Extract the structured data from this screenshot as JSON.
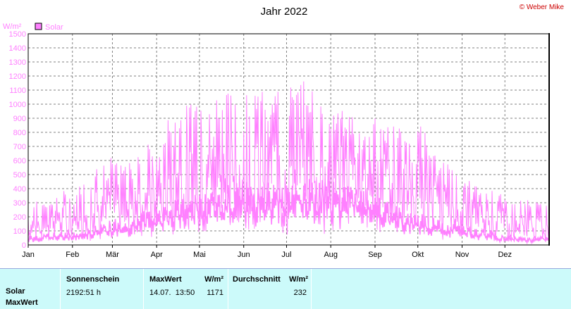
{
  "header": {
    "title": "Jahr 2022",
    "credit": "© Weber Mike"
  },
  "colors": {
    "solar": "#ff80ff",
    "solar_legend_fill": "#ff80ff",
    "grid": "#808080",
    "stats_bg": "#ccfafa"
  },
  "chart_data": {
    "type": "line",
    "title": "Jahr 2022",
    "ylabel": "W/m²",
    "ylim": [
      0,
      1500
    ],
    "yticks": [
      0,
      100,
      200,
      300,
      400,
      500,
      600,
      700,
      800,
      900,
      1000,
      1100,
      1200,
      1300,
      1400,
      1500
    ],
    "months": [
      "Jan",
      "Feb",
      "Mär",
      "Apr",
      "Mai",
      "Jun",
      "Jul",
      "Aug",
      "Sep",
      "Okt",
      "Nov",
      "Dez"
    ],
    "grid": true,
    "legend": "top-left",
    "series": [
      {
        "name": "Solar",
        "color": "#ff80ff",
        "description_of_shape": "daily max",
        "weekly_max_envelope": [
          {
            "x": "2022-01-01",
            "y": 300
          },
          {
            "x": "2022-01-08",
            "y": 350
          },
          {
            "x": "2022-01-15",
            "y": 300
          },
          {
            "x": "2022-01-22",
            "y": 400
          },
          {
            "x": "2022-01-29",
            "y": 380
          },
          {
            "x": "2022-02-05",
            "y": 420
          },
          {
            "x": "2022-02-12",
            "y": 460
          },
          {
            "x": "2022-02-19",
            "y": 600
          },
          {
            "x": "2022-02-26",
            "y": 640
          },
          {
            "x": "2022-03-05",
            "y": 600
          },
          {
            "x": "2022-03-12",
            "y": 620
          },
          {
            "x": "2022-03-19",
            "y": 700
          },
          {
            "x": "2022-03-26",
            "y": 720
          },
          {
            "x": "2022-04-02",
            "y": 640
          },
          {
            "x": "2022-04-09",
            "y": 900
          },
          {
            "x": "2022-04-16",
            "y": 980
          },
          {
            "x": "2022-04-23",
            "y": 1000
          },
          {
            "x": "2022-04-30",
            "y": 1050
          },
          {
            "x": "2022-05-07",
            "y": 1060
          },
          {
            "x": "2022-05-14",
            "y": 1100
          },
          {
            "x": "2022-05-21",
            "y": 1120
          },
          {
            "x": "2022-05-28",
            "y": 1160
          },
          {
            "x": "2022-06-04",
            "y": 1140
          },
          {
            "x": "2022-06-11",
            "y": 1120
          },
          {
            "x": "2022-06-18",
            "y": 1100
          },
          {
            "x": "2022-06-25",
            "y": 1090
          },
          {
            "x": "2022-07-02",
            "y": 1120
          },
          {
            "x": "2022-07-09",
            "y": 1150
          },
          {
            "x": "2022-07-14",
            "y": 1171
          },
          {
            "x": "2022-07-21",
            "y": 1120
          },
          {
            "x": "2022-07-28",
            "y": 1050
          },
          {
            "x": "2022-08-04",
            "y": 980
          },
          {
            "x": "2022-08-11",
            "y": 960
          },
          {
            "x": "2022-08-18",
            "y": 940
          },
          {
            "x": "2022-08-25",
            "y": 920
          },
          {
            "x": "2022-09-01",
            "y": 960
          },
          {
            "x": "2022-09-08",
            "y": 900
          },
          {
            "x": "2022-09-15",
            "y": 850
          },
          {
            "x": "2022-09-22",
            "y": 820
          },
          {
            "x": "2022-09-29",
            "y": 820
          },
          {
            "x": "2022-10-06",
            "y": 860
          },
          {
            "x": "2022-10-13",
            "y": 700
          },
          {
            "x": "2022-10-20",
            "y": 600
          },
          {
            "x": "2022-10-27",
            "y": 520
          },
          {
            "x": "2022-11-03",
            "y": 480
          },
          {
            "x": "2022-11-10",
            "y": 440
          },
          {
            "x": "2022-11-17",
            "y": 400
          },
          {
            "x": "2022-11-24",
            "y": 380
          },
          {
            "x": "2022-12-01",
            "y": 350
          },
          {
            "x": "2022-12-08",
            "y": 310
          },
          {
            "x": "2022-12-15",
            "y": 320
          },
          {
            "x": "2022-12-22",
            "y": 330
          },
          {
            "x": "2022-12-31",
            "y": 280
          }
        ]
      },
      {
        "name": "Solar",
        "color": "#ff80ff",
        "description_of_shape": "daily mean",
        "weekly_mean_envelope": [
          {
            "x": "2022-01-01",
            "y": 60
          },
          {
            "x": "2022-01-15",
            "y": 80
          },
          {
            "x": "2022-02-01",
            "y": 90
          },
          {
            "x": "2022-02-15",
            "y": 120
          },
          {
            "x": "2022-03-01",
            "y": 170
          },
          {
            "x": "2022-03-15",
            "y": 200
          },
          {
            "x": "2022-04-01",
            "y": 260
          },
          {
            "x": "2022-04-15",
            "y": 300
          },
          {
            "x": "2022-05-01",
            "y": 330
          },
          {
            "x": "2022-05-15",
            "y": 380
          },
          {
            "x": "2022-06-01",
            "y": 420
          },
          {
            "x": "2022-06-15",
            "y": 440
          },
          {
            "x": "2022-07-01",
            "y": 420
          },
          {
            "x": "2022-07-15",
            "y": 430
          },
          {
            "x": "2022-08-01",
            "y": 420
          },
          {
            "x": "2022-08-15",
            "y": 380
          },
          {
            "x": "2022-09-01",
            "y": 320
          },
          {
            "x": "2022-09-15",
            "y": 260
          },
          {
            "x": "2022-10-01",
            "y": 210
          },
          {
            "x": "2022-10-15",
            "y": 170
          },
          {
            "x": "2022-11-01",
            "y": 130
          },
          {
            "x": "2022-11-15",
            "y": 100
          },
          {
            "x": "2022-12-01",
            "y": 60
          },
          {
            "x": "2022-12-15",
            "y": 50
          },
          {
            "x": "2022-12-31",
            "y": 60
          }
        ]
      }
    ]
  },
  "stats": {
    "row_labels": [
      "Solar",
      "MaxWert"
    ],
    "sonnenschein_header": "Sonnenschein",
    "sonnenschein_value": "2192:51 h",
    "maxwert_header": "MaxWert",
    "maxwert_unit": "W/m²",
    "maxwert_datetime": "14.07.  13:50",
    "maxwert_value": "1171",
    "durchschnitt_header": "Durchschnitt",
    "durchschnitt_unit": "W/m²",
    "durchschnitt_value": "232"
  }
}
